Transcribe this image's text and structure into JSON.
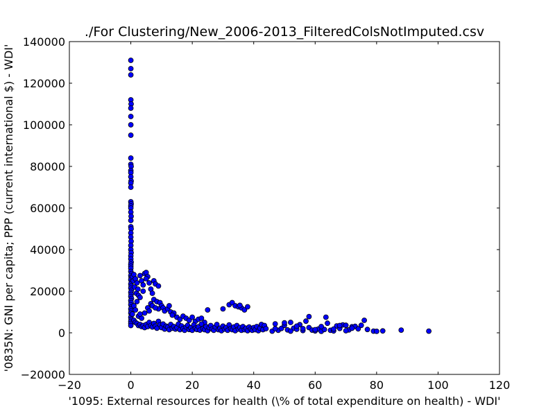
{
  "chart_data": {
    "type": "scatter",
    "title": "./For Clustering/New_2006-2013_FilteredColsNotImputed.csv",
    "xlabel": "'1095: External resources for health  (\\% of total expenditure on health) - WDI'",
    "ylabel": "'0835N: GNI per capita; PPP  (current international $) - WDI'",
    "xlim": [
      -20,
      120
    ],
    "ylim": [
      -20000,
      140000
    ],
    "x_ticks": [
      -20,
      0,
      20,
      40,
      60,
      80,
      100,
      120
    ],
    "y_ticks": [
      -20000,
      0,
      20000,
      40000,
      60000,
      80000,
      100000,
      120000,
      140000
    ],
    "x_tick_labels": [
      "−20",
      "0",
      "20",
      "40",
      "60",
      "80",
      "100",
      "120"
    ],
    "y_tick_labels": [
      "−20000",
      "0",
      "20000",
      "40000",
      "60000",
      "80000",
      "100000",
      "120000",
      "140000"
    ],
    "grid": false,
    "marker_color": "#0000ff",
    "marker_edge_color": "#000000",
    "series": [
      {
        "points": [
          [
            0,
            131000
          ],
          [
            0,
            127000
          ],
          [
            0,
            124000
          ],
          [
            0,
            112000
          ],
          [
            0.1,
            110000
          ],
          [
            0,
            108000
          ],
          [
            0,
            104000
          ],
          [
            0,
            100000
          ],
          [
            0,
            95000
          ],
          [
            0,
            84000
          ],
          [
            0,
            81000
          ],
          [
            0.1,
            80000
          ],
          [
            0,
            78000
          ],
          [
            0,
            77000
          ],
          [
            0,
            75000
          ],
          [
            0.1,
            73000
          ],
          [
            0,
            72000
          ],
          [
            0,
            70000
          ],
          [
            0,
            63000
          ],
          [
            0.1,
            62000
          ],
          [
            0,
            61000
          ],
          [
            0,
            60000
          ],
          [
            0,
            58000
          ],
          [
            0.1,
            56000
          ],
          [
            0,
            54000
          ],
          [
            0,
            51000
          ],
          [
            0.1,
            50000
          ],
          [
            0,
            48000
          ],
          [
            0,
            46000
          ],
          [
            0.1,
            44000
          ],
          [
            0,
            42000
          ],
          [
            0,
            40000
          ],
          [
            0.1,
            38500
          ],
          [
            0,
            37000
          ],
          [
            0,
            35500
          ],
          [
            0.1,
            34000
          ],
          [
            0,
            33000
          ],
          [
            0,
            32000
          ],
          [
            0,
            31000
          ],
          [
            0,
            29500
          ],
          [
            0.2,
            28500
          ],
          [
            0,
            27500
          ],
          [
            0.1,
            26500
          ],
          [
            0,
            25500
          ],
          [
            0.2,
            24500
          ],
          [
            0,
            23500
          ],
          [
            0.1,
            22500
          ],
          [
            0,
            21500
          ],
          [
            0.2,
            20500
          ],
          [
            0,
            19500
          ],
          [
            0.1,
            18500
          ],
          [
            0,
            17500
          ],
          [
            0.2,
            16500
          ],
          [
            0,
            15500
          ],
          [
            0.1,
            14500
          ],
          [
            0,
            13500
          ],
          [
            0.2,
            12500
          ],
          [
            0,
            11500
          ],
          [
            0.1,
            10500
          ],
          [
            0,
            9500
          ],
          [
            0.2,
            8500
          ],
          [
            0,
            7500
          ],
          [
            0.1,
            6500
          ],
          [
            0,
            5500
          ],
          [
            0,
            4500
          ],
          [
            0,
            3500
          ],
          [
            0.5,
            27000
          ],
          [
            0.8,
            25000
          ],
          [
            1,
            28000
          ],
          [
            1.2,
            22000
          ],
          [
            1.5,
            26000
          ],
          [
            1.8,
            19000
          ],
          [
            2,
            24000
          ],
          [
            2.3,
            21000
          ],
          [
            2.5,
            18000
          ],
          [
            3,
            27500
          ],
          [
            3.5,
            25000
          ],
          [
            4,
            23000
          ],
          [
            4.5,
            28500
          ],
          [
            5,
            29000
          ],
          [
            5.5,
            27000
          ],
          [
            6,
            24000
          ],
          [
            6.5,
            21000
          ],
          [
            7,
            19000
          ],
          [
            7.5,
            25000
          ],
          [
            8,
            23500
          ],
          [
            9,
            22500
          ],
          [
            5,
            26000
          ],
          [
            4,
            20000
          ],
          [
            3,
            17000
          ],
          [
            2,
            15000
          ],
          [
            1,
            13000
          ],
          [
            1.5,
            11000
          ],
          [
            0.5,
            9000
          ],
          [
            2.5,
            8000
          ],
          [
            3.5,
            7000
          ],
          [
            4.5,
            9500
          ],
          [
            5.5,
            12000
          ],
          [
            6.5,
            14000
          ],
          [
            7.5,
            16000
          ],
          [
            8.5,
            15000
          ],
          [
            9.5,
            14500
          ],
          [
            10,
            13000
          ],
          [
            10.5,
            12000
          ],
          [
            11,
            10500
          ],
          [
            12,
            11500
          ],
          [
            13,
            10000
          ],
          [
            14,
            9500
          ],
          [
            12.5,
            13000
          ],
          [
            13.5,
            8500
          ],
          [
            15,
            7500
          ],
          [
            16,
            6500
          ],
          [
            17,
            8000
          ],
          [
            18,
            7000
          ],
          [
            19,
            6000
          ],
          [
            20,
            7500
          ],
          [
            21,
            5500
          ],
          [
            22,
            6500
          ],
          [
            23,
            7000
          ],
          [
            24,
            5000
          ],
          [
            1,
            6000
          ],
          [
            1.5,
            5000
          ],
          [
            2,
            4500
          ],
          [
            2.5,
            3500
          ],
          [
            3,
            4000
          ],
          [
            3.5,
            3000
          ],
          [
            4,
            3500
          ],
          [
            4.5,
            2500
          ],
          [
            5,
            4000
          ],
          [
            5.5,
            3000
          ],
          [
            6,
            5000
          ],
          [
            6.5,
            3500
          ],
          [
            7,
            2800
          ],
          [
            7.5,
            4500
          ],
          [
            8,
            3200
          ],
          [
            8.5,
            2200
          ],
          [
            9,
            5500
          ],
          [
            9.5,
            3800
          ],
          [
            10,
            2500
          ],
          [
            10.5,
            4200
          ],
          [
            11,
            1800
          ],
          [
            11.5,
            3200
          ],
          [
            12,
            2800
          ],
          [
            12.5,
            1500
          ],
          [
            13,
            4000
          ],
          [
            13.5,
            2200
          ],
          [
            14,
            3000
          ],
          [
            14.5,
            1800
          ],
          [
            15,
            2500
          ],
          [
            15.5,
            4200
          ],
          [
            16,
            1500
          ],
          [
            16.5,
            3300
          ],
          [
            17,
            2000
          ],
          [
            17.5,
            1200
          ],
          [
            18,
            2800
          ],
          [
            18.5,
            3600
          ],
          [
            19,
            1600
          ],
          [
            19.5,
            2400
          ],
          [
            20,
            1200
          ],
          [
            20.5,
            3800
          ],
          [
            21,
            2200
          ],
          [
            21.5,
            1600
          ],
          [
            22,
            2900
          ],
          [
            22.5,
            1300
          ],
          [
            23,
            4200
          ],
          [
            23.5,
            2000
          ],
          [
            24,
            1500
          ],
          [
            24.5,
            3000
          ],
          [
            25,
            1000
          ],
          [
            25.5,
            2500
          ],
          [
            26,
            3500
          ],
          [
            26.5,
            1800
          ],
          [
            27,
            1200
          ],
          [
            27.5,
            2800
          ],
          [
            28,
            4000
          ],
          [
            28.5,
            1500
          ],
          [
            29,
            2200
          ],
          [
            29.5,
            1000
          ],
          [
            30,
            3200
          ],
          [
            30.5,
            1800
          ],
          [
            31,
            2500
          ],
          [
            31.5,
            1200
          ],
          [
            32,
            3800
          ],
          [
            32.5,
            2000
          ],
          [
            33,
            1500
          ],
          [
            33.5,
            2800
          ],
          [
            34,
            1000
          ],
          [
            34.5,
            3500
          ],
          [
            35,
            1800
          ],
          [
            35.5,
            2500
          ],
          [
            36,
            1200
          ],
          [
            36.5,
            3000
          ],
          [
            37,
            1500
          ],
          [
            37.5,
            2200
          ],
          [
            38,
            1000
          ],
          [
            38.5,
            2800
          ],
          [
            39,
            1800
          ],
          [
            39.5,
            1200
          ],
          [
            40,
            2500
          ],
          [
            40.5,
            1500
          ],
          [
            41,
            3000
          ],
          [
            41.5,
            1000
          ],
          [
            42,
            2200
          ],
          [
            42.5,
            4000
          ],
          [
            43,
            1500
          ],
          [
            43.5,
            3500
          ],
          [
            44,
            2000
          ],
          [
            25,
            11000
          ],
          [
            30,
            11500
          ],
          [
            32,
            13500
          ],
          [
            33,
            14500
          ],
          [
            34,
            13000
          ],
          [
            35,
            12500
          ],
          [
            36,
            12000
          ],
          [
            37,
            11000
          ],
          [
            38,
            12500
          ],
          [
            35.5,
            13200
          ],
          [
            3,
            9000
          ],
          [
            6,
            10500
          ],
          [
            9,
            11500
          ],
          [
            7,
            13000
          ],
          [
            8,
            12000
          ],
          [
            46,
            800
          ],
          [
            47,
            4300
          ],
          [
            48,
            1200
          ],
          [
            49,
            2100
          ],
          [
            50,
            3600
          ],
          [
            51,
            1400
          ],
          [
            52,
            5000
          ],
          [
            53,
            2200
          ],
          [
            54,
            1700
          ],
          [
            55,
            3900
          ],
          [
            56,
            1100
          ],
          [
            57,
            5600
          ],
          [
            58,
            2500
          ],
          [
            59,
            1300
          ],
          [
            60,
            900
          ],
          [
            61,
            1800
          ],
          [
            62,
            700
          ],
          [
            63,
            1600
          ],
          [
            64,
            4600
          ],
          [
            65,
            1200
          ],
          [
            66,
            900
          ],
          [
            67,
            3300
          ],
          [
            68,
            2100
          ],
          [
            69,
            3800
          ],
          [
            70,
            3600
          ],
          [
            71,
            1400
          ],
          [
            72,
            2900
          ],
          [
            73,
            3100
          ],
          [
            74,
            1900
          ],
          [
            75,
            3600
          ],
          [
            76,
            6000
          ],
          [
            77,
            1600
          ],
          [
            79,
            800
          ],
          [
            80,
            700
          ],
          [
            82,
            900
          ],
          [
            88,
            1300
          ],
          [
            97,
            800
          ],
          [
            63.5,
            7500
          ],
          [
            58,
            7800
          ],
          [
            47,
            2000
          ],
          [
            50,
            4800
          ],
          [
            52,
            800
          ],
          [
            54,
            3200
          ],
          [
            56,
            2000
          ],
          [
            60,
            1500
          ],
          [
            62,
            3000
          ],
          [
            66,
            1800
          ],
          [
            68,
            3500
          ],
          [
            70,
            1000
          ],
          [
            72,
            2200
          ]
        ]
      }
    ]
  }
}
